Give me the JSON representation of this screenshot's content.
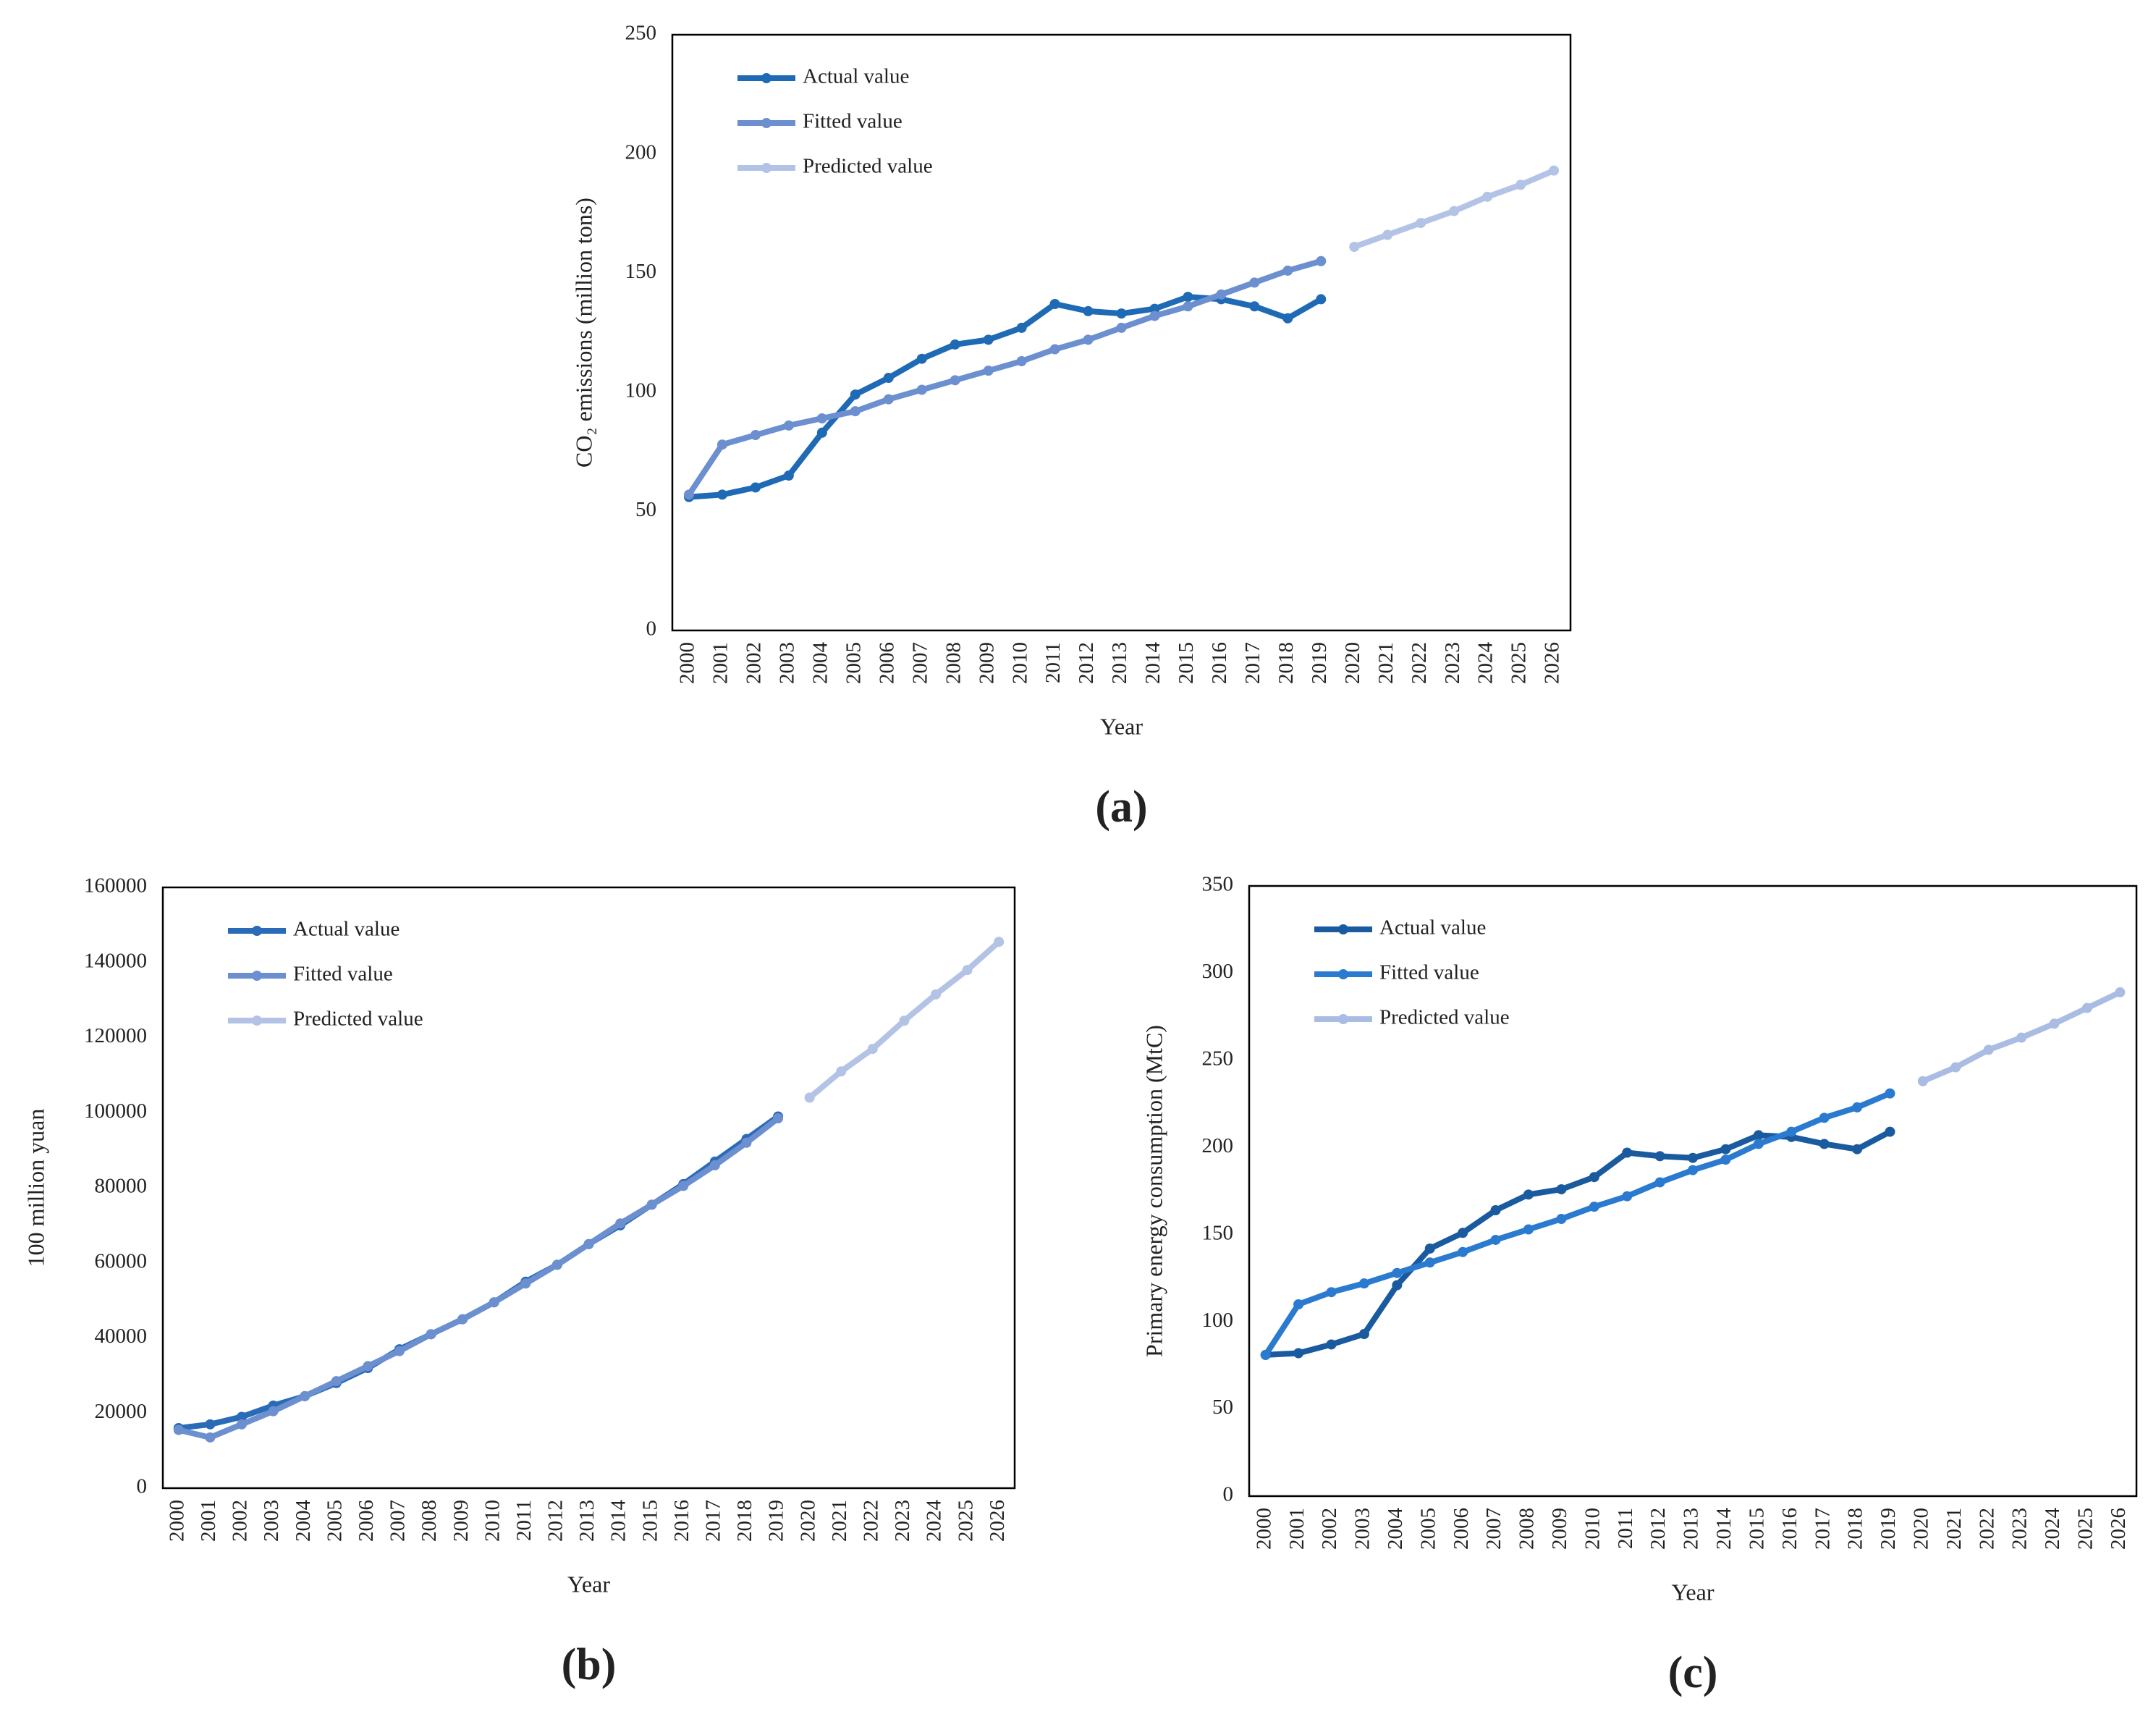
{
  "chart_data": [
    {
      "type": "line",
      "panel_label": "(a)",
      "x_label": "Year",
      "y_label": "CO₂ emissions (million tons)",
      "legend": "upper left",
      "categories": [
        "2000",
        "2001",
        "2002",
        "2003",
        "2004",
        "2005",
        "2006",
        "2007",
        "2008",
        "2009",
        "2010",
        "2011",
        "2012",
        "2013",
        "2014",
        "2015",
        "2016",
        "2017",
        "2018",
        "2019",
        "2020",
        "2021",
        "2022",
        "2023",
        "2024",
        "2025",
        "2026"
      ],
      "ylim": [
        0,
        250
      ],
      "yticks": [
        0,
        50,
        100,
        150,
        200,
        250
      ],
      "series": [
        {
          "name": "Actual value",
          "color": "#1f6ab5",
          "values": [
            56,
            57,
            60,
            65,
            83,
            99,
            106,
            114,
            120,
            122,
            127,
            137,
            134,
            133,
            135,
            140,
            139,
            136,
            131,
            139,
            null,
            null,
            null,
            null,
            null,
            null,
            null
          ]
        },
        {
          "name": "Fitted value",
          "color": "#6b8fcf",
          "values": [
            57,
            78,
            82,
            86,
            89,
            92,
            97,
            101,
            105,
            109,
            113,
            118,
            122,
            127,
            132,
            136,
            141,
            146,
            151,
            155,
            null,
            null,
            null,
            null,
            null,
            null,
            null
          ]
        },
        {
          "name": "Predicted value",
          "color": "#b3c3e5",
          "values": [
            null,
            null,
            null,
            null,
            null,
            null,
            null,
            null,
            null,
            null,
            null,
            null,
            null,
            null,
            null,
            null,
            null,
            null,
            null,
            null,
            161,
            166,
            171,
            176,
            182,
            187,
            193
          ]
        }
      ]
    },
    {
      "type": "line",
      "panel_label": "(b)",
      "x_label": "Year",
      "y_label": "100 million yuan",
      "legend": "upper left",
      "categories": [
        "2000",
        "2001",
        "2002",
        "2003",
        "2004",
        "2005",
        "2006",
        "2007",
        "2008",
        "2009",
        "2010",
        "2011",
        "2012",
        "2013",
        "2014",
        "2015",
        "2016",
        "2017",
        "2018",
        "2019",
        "2020",
        "2021",
        "2022",
        "2023",
        "2024",
        "2025",
        "2026"
      ],
      "ylim": [
        0,
        160000
      ],
      "yticks": [
        0,
        20000,
        40000,
        60000,
        80000,
        100000,
        120000,
        140000,
        160000
      ],
      "series": [
        {
          "name": "Actual value",
          "color": "#2a6bb8",
          "values": [
            16000,
            17000,
            19000,
            22000,
            24500,
            28000,
            32000,
            37000,
            41000,
            45000,
            49500,
            55000,
            59500,
            65000,
            70000,
            75500,
            81000,
            87000,
            93000,
            99000,
            null,
            null,
            null,
            null,
            null,
            null,
            null
          ]
        },
        {
          "name": "Fitted value",
          "color": "#6b8fcf",
          "values": [
            15500,
            13500,
            17000,
            20500,
            24500,
            28500,
            32500,
            36500,
            41000,
            45000,
            49500,
            54500,
            59500,
            65000,
            70500,
            75500,
            80500,
            86000,
            92000,
            98500,
            null,
            null,
            null,
            null,
            null,
            null,
            null
          ]
        },
        {
          "name": "Predicted value",
          "color": "#b3c3e5",
          "values": [
            null,
            null,
            null,
            null,
            null,
            null,
            null,
            null,
            null,
            null,
            null,
            null,
            null,
            null,
            null,
            null,
            null,
            null,
            null,
            null,
            104000,
            111000,
            117000,
            124500,
            131500,
            138000,
            145500
          ]
        }
      ]
    },
    {
      "type": "line",
      "panel_label": "(c)",
      "x_label": "Year",
      "y_label": "Primary energy consumption (MtC)",
      "legend": "upper left",
      "categories": [
        "2000",
        "2001",
        "2002",
        "2003",
        "2004",
        "2005",
        "2006",
        "2007",
        "2008",
        "2009",
        "2010",
        "2011",
        "2012",
        "2013",
        "2014",
        "2015",
        "2016",
        "2017",
        "2018",
        "2019",
        "2020",
        "2021",
        "2022",
        "2023",
        "2024",
        "2025",
        "2026"
      ],
      "ylim": [
        0,
        350
      ],
      "yticks": [
        0,
        50,
        100,
        150,
        200,
        250,
        300,
        350
      ],
      "series": [
        {
          "name": "Actual value",
          "color": "#1a5a9e",
          "values": [
            81,
            82,
            87,
            93,
            121,
            142,
            151,
            164,
            173,
            176,
            183,
            197,
            195,
            194,
            199,
            207,
            206,
            202,
            199,
            209,
            null,
            null,
            null,
            null,
            null,
            null,
            null
          ]
        },
        {
          "name": "Fitted value",
          "color": "#2a7bd0",
          "values": [
            81,
            110,
            117,
            122,
            128,
            134,
            140,
            147,
            153,
            159,
            166,
            172,
            180,
            187,
            193,
            202,
            209,
            217,
            223,
            231,
            null,
            null,
            null,
            null,
            null,
            null,
            null
          ]
        },
        {
          "name": "Predicted value",
          "color": "#a9bde4",
          "values": [
            null,
            null,
            null,
            null,
            null,
            null,
            null,
            null,
            null,
            null,
            null,
            null,
            null,
            null,
            null,
            null,
            null,
            null,
            null,
            null,
            238,
            246,
            256,
            263,
            271,
            280,
            289
          ]
        }
      ]
    }
  ]
}
